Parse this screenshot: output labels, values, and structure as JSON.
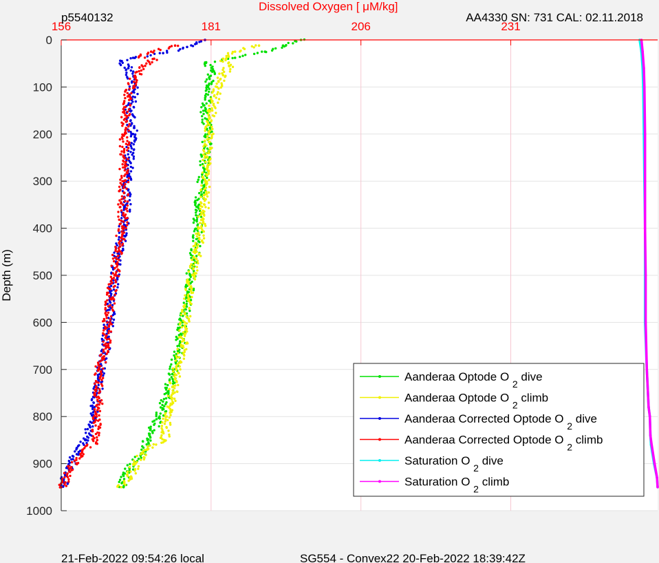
{
  "header": {
    "left": "p5540132",
    "title": "Dissolved Oxygen [    μM/kg]",
    "right": "AA4330   SN: 731   CAL: 02.11.2018"
  },
  "footer": {
    "left": "21-Feb-2022 09:54:26 local",
    "center": "SG554 - Convex22 20-Feb-2022 18:39:42Z"
  },
  "colors": {
    "axis_top": "#ff0000",
    "plot_bg": "#ffffff",
    "page_bg": "#f2f2f2"
  },
  "chart_data": {
    "type": "scatter",
    "title": "Dissolved Oxygen [    μM/kg]",
    "xlabel": "",
    "ylabel": "Depth (m)",
    "x_ticks": [
      "156",
      "181",
      "206",
      "231"
    ],
    "x_tick_values": [
      156,
      181,
      206,
      231
    ],
    "xlim": [
      156,
      255.5
    ],
    "y_ticks": [
      "0",
      "100",
      "200",
      "300",
      "400",
      "500",
      "600",
      "700",
      "800",
      "900",
      "1000"
    ],
    "y_tick_values": [
      0,
      100,
      200,
      300,
      400,
      500,
      600,
      700,
      800,
      900,
      1000
    ],
    "ylim": [
      0,
      1000
    ],
    "y_reversed": true,
    "grid": true,
    "legend_position": "bottom-right",
    "series": [
      {
        "name": "Aanderaa Optode O2 dive",
        "legend_label": {
          "main": "Aanderaa Optode O",
          "sub": "2",
          "tail": "dive"
        },
        "color": "#00e000",
        "kind": "dots",
        "points": [
          [
            196,
            0
          ],
          [
            193,
            12
          ],
          [
            190,
            25
          ],
          [
            185,
            38
          ],
          [
            180,
            48
          ],
          [
            181,
            65
          ],
          [
            180.5,
            100
          ],
          [
            180,
            150
          ],
          [
            180.5,
            200
          ],
          [
            180,
            250
          ],
          [
            179.5,
            300
          ],
          [
            179,
            350
          ],
          [
            178.8,
            400
          ],
          [
            178.3,
            450
          ],
          [
            177.6,
            500
          ],
          [
            177.2,
            550
          ],
          [
            176.2,
            600
          ],
          [
            175.8,
            650
          ],
          [
            174.6,
            700
          ],
          [
            173.9,
            750
          ],
          [
            172.4,
            800
          ],
          [
            170.4,
            850
          ],
          [
            169.4,
            880
          ],
          [
            167.4,
            910
          ],
          [
            166.2,
            940
          ],
          [
            166.4,
            950
          ]
        ]
      },
      {
        "name": "Aanderaa Optode O2 climb",
        "legend_label": {
          "main": "Aanderaa Optode O",
          "sub": "2",
          "tail": "climb"
        },
        "color": "#f0f000",
        "kind": "dots",
        "points": [
          [
            189,
            12
          ],
          [
            185,
            25
          ],
          [
            183,
            40
          ],
          [
            184,
            55
          ],
          [
            183,
            75
          ],
          [
            182,
            100
          ],
          [
            181.2,
            150
          ],
          [
            180.7,
            200
          ],
          [
            180.4,
            250
          ],
          [
            180.1,
            300
          ],
          [
            179.9,
            350
          ],
          [
            179.4,
            400
          ],
          [
            178.6,
            450
          ],
          [
            177.9,
            500
          ],
          [
            177.3,
            550
          ],
          [
            176.6,
            600
          ],
          [
            176.3,
            650
          ],
          [
            175.2,
            700
          ],
          [
            174.6,
            750
          ],
          [
            173.6,
            800
          ],
          [
            173.2,
            850
          ],
          [
            170.3,
            870
          ],
          [
            168.4,
            900
          ],
          [
            167.5,
            930
          ],
          [
            166,
            950
          ]
        ]
      },
      {
        "name": "Aanderaa Corrected Optode O2 dive",
        "legend_label": {
          "main": "Aanderaa Corrected Optode O",
          "sub": "2",
          "tail": "dive"
        },
        "color": "#0000e0",
        "kind": "dots",
        "points": [
          [
            180,
            0
          ],
          [
            177,
            15
          ],
          [
            173,
            28
          ],
          [
            168,
            38
          ],
          [
            166,
            45
          ],
          [
            167.2,
            60
          ],
          [
            168.2,
            100
          ],
          [
            167.4,
            150
          ],
          [
            168,
            200
          ],
          [
            167.3,
            250
          ],
          [
            167,
            300
          ],
          [
            166.8,
            350
          ],
          [
            166.4,
            400
          ],
          [
            165.6,
            450
          ],
          [
            165,
            500
          ],
          [
            164.4,
            550
          ],
          [
            164,
            600
          ],
          [
            163.4,
            650
          ],
          [
            162.8,
            700
          ],
          [
            162,
            750
          ],
          [
            161.4,
            800
          ],
          [
            160,
            850
          ],
          [
            158.6,
            880
          ],
          [
            157.2,
            910
          ],
          [
            156.4,
            940
          ],
          [
            156,
            950
          ]
        ]
      },
      {
        "name": "Aanderaa Corrected Optode O2 climb",
        "legend_label": {
          "main": "Aanderaa Corrected Optode O",
          "sub": "2",
          "tail": "climb"
        },
        "color": "#ff0000",
        "kind": "dots",
        "points": [
          [
            175,
            12
          ],
          [
            171,
            25
          ],
          [
            169,
            35
          ],
          [
            171.5,
            40
          ],
          [
            170,
            55
          ],
          [
            168.3,
            80
          ],
          [
            167.1,
            120
          ],
          [
            166.7,
            160
          ],
          [
            166.6,
            200
          ],
          [
            166.5,
            250
          ],
          [
            166.5,
            300
          ],
          [
            166.3,
            350
          ],
          [
            166.2,
            400
          ],
          [
            165.4,
            450
          ],
          [
            164.9,
            500
          ],
          [
            164.2,
            550
          ],
          [
            163.7,
            600
          ],
          [
            163.5,
            650
          ],
          [
            162.3,
            700
          ],
          [
            162.3,
            750
          ],
          [
            161.9,
            800
          ],
          [
            162,
            850
          ],
          [
            159.2,
            880
          ],
          [
            157.5,
            910
          ],
          [
            156.7,
            940
          ],
          [
            156,
            950
          ]
        ]
      },
      {
        "name": "Saturation O2 dive",
        "legend_label": {
          "main": "Saturation O",
          "sub": "2",
          "tail": "dive"
        },
        "color": "#00f0f0",
        "kind": "line",
        "points": [
          [
            252.5,
            0
          ],
          [
            252.8,
            25
          ],
          [
            253,
            60
          ],
          [
            253.1,
            100
          ],
          [
            253.2,
            200
          ],
          [
            253.3,
            300
          ],
          [
            253.4,
            400
          ],
          [
            253.4,
            500
          ],
          [
            253.4,
            600
          ],
          [
            253.7,
            700
          ],
          [
            254,
            780
          ],
          [
            254.2,
            800
          ],
          [
            254.3,
            840
          ],
          [
            254.4,
            860
          ],
          [
            254.9,
            900
          ],
          [
            255.4,
            930
          ],
          [
            255.5,
            950
          ]
        ]
      },
      {
        "name": "Saturation O2 climb",
        "legend_label": {
          "main": "Saturation O",
          "sub": "2",
          "tail": "climb"
        },
        "color": "#ff00ff",
        "kind": "line",
        "points": [
          [
            252.8,
            0
          ],
          [
            253,
            25
          ],
          [
            253.2,
            60
          ],
          [
            253.3,
            100
          ],
          [
            253.4,
            200
          ],
          [
            253.4,
            300
          ],
          [
            253.4,
            400
          ],
          [
            253.5,
            500
          ],
          [
            253.5,
            600
          ],
          [
            253.7,
            700
          ],
          [
            254,
            780
          ],
          [
            254.2,
            800
          ],
          [
            254.3,
            840
          ],
          [
            254.5,
            860
          ],
          [
            255,
            900
          ],
          [
            255.4,
            930
          ],
          [
            255.5,
            950
          ]
        ]
      }
    ]
  }
}
